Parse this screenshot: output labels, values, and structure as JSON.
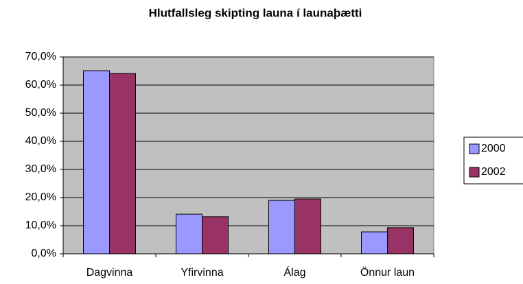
{
  "chart_data": {
    "type": "bar",
    "title": "Hlutfallsleg skipting launa í launaþætti",
    "categories": [
      "Dagvinna",
      "Yfirvinna",
      "Álag",
      "Önnur laun"
    ],
    "series": [
      {
        "name": "2000",
        "color": "#9999ff",
        "values": [
          65.1,
          14.1,
          19.0,
          7.8
        ]
      },
      {
        "name": "2002",
        "color": "#993366",
        "values": [
          64.1,
          13.2,
          19.5,
          9.3
        ]
      }
    ],
    "ylim": [
      0,
      70
    ],
    "yticks": [
      {
        "value": 0,
        "label": "0,0%"
      },
      {
        "value": 10,
        "label": "10,0%"
      },
      {
        "value": 20,
        "label": "20,0%"
      },
      {
        "value": 30,
        "label": "30,0%"
      },
      {
        "value": 40,
        "label": "40,0%"
      },
      {
        "value": 50,
        "label": "50,0%"
      },
      {
        "value": 60,
        "label": "60,0%"
      },
      {
        "value": 70,
        "label": "70,0%"
      }
    ],
    "grid": true,
    "legend": "right"
  }
}
